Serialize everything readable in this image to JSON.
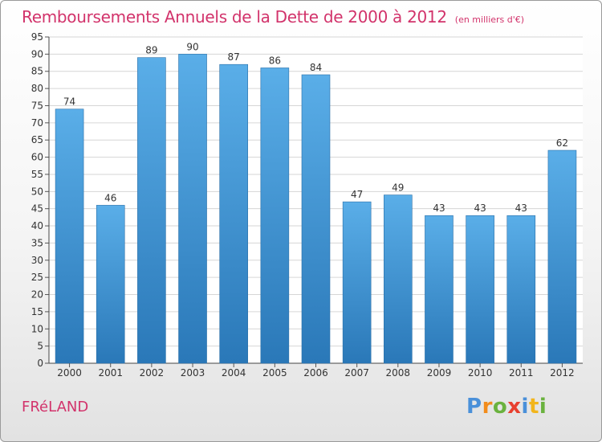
{
  "title": "Remboursements Annuels de la Dette de 2000 à 2012",
  "unit": "(en milliers d'€)",
  "town": "FRéLAND",
  "logo": {
    "letters": [
      "P",
      "r",
      "o",
      "x",
      "i",
      "t",
      "i"
    ],
    "colors": [
      "#4a90d9",
      "#f28c1c",
      "#6ab23e",
      "#e8402f",
      "#4a90d9",
      "#f2b51c",
      "#6ab23e"
    ]
  },
  "colors": {
    "bar_top": "#5aaee8",
    "bar_bottom": "#2a78b8",
    "grid": "#d6d6d6",
    "title": "#d2336b"
  },
  "chart_data": {
    "type": "bar",
    "categories": [
      "2000",
      "2001",
      "2002",
      "2003",
      "2004",
      "2005",
      "2006",
      "2007",
      "2008",
      "2009",
      "2010",
      "2011",
      "2012"
    ],
    "values": [
      74,
      46,
      89,
      90,
      87,
      86,
      84,
      47,
      49,
      43,
      43,
      43,
      62
    ],
    "ylim": [
      0,
      95
    ],
    "yticks": [
      0,
      5,
      10,
      15,
      20,
      25,
      30,
      35,
      40,
      45,
      50,
      55,
      60,
      65,
      70,
      75,
      80,
      85,
      90,
      95
    ],
    "grid": true
  }
}
